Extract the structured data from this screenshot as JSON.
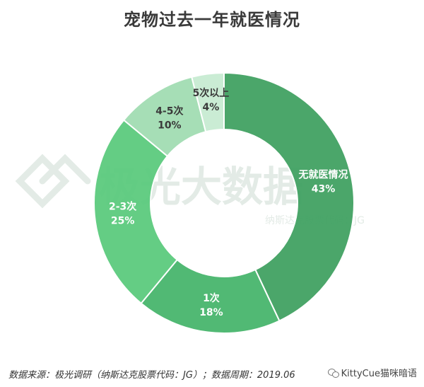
{
  "title": "宠物过去一年就医情况",
  "watermark": {
    "brand": "极光大数据",
    "code": "纳斯达克股票代码：JG"
  },
  "source": "数据来源：极光调研（纳斯达克股票代码：JG）；数据周期：2019.06",
  "brand_label": "KittyCue猫咪暗语",
  "chart_data": {
    "type": "pie",
    "donut": true,
    "title": "宠物过去一年就医情况",
    "slices": [
      {
        "label": "无就医情况",
        "value": 43,
        "value_label": "43%",
        "color": "#3d9f5f"
      },
      {
        "label": "1次",
        "value": 18,
        "value_label": "18%",
        "color": "#44b469"
      },
      {
        "label": "2-3次",
        "value": 25,
        "value_label": "25%",
        "color": "#58c97b"
      },
      {
        "label": "4-5次",
        "value": 10,
        "value_label": "10%",
        "color": "#9fdcb0"
      },
      {
        "label": "5次以上",
        "value": 4,
        "value_label": "4%",
        "color": "#c6ebd1"
      }
    ],
    "legend": "none",
    "grid": false
  }
}
